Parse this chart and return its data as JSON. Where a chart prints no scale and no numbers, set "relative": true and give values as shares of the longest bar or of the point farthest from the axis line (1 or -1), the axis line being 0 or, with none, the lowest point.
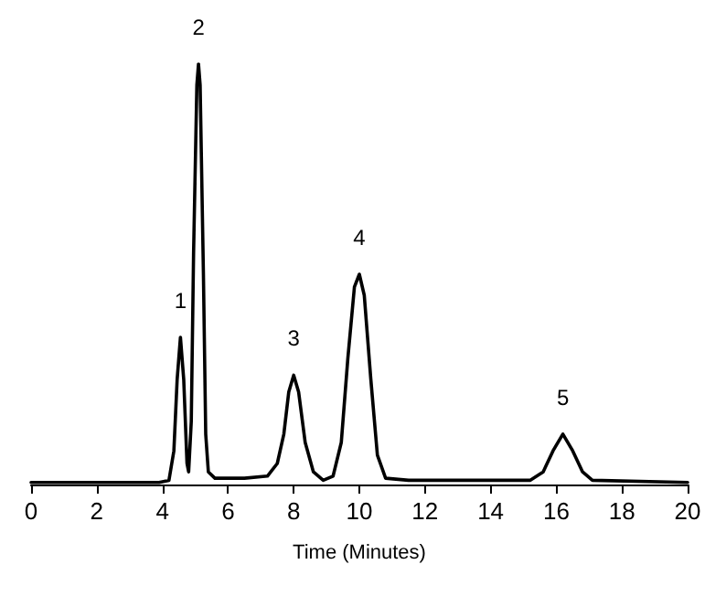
{
  "chart_data": {
    "type": "line",
    "relative": true,
    "xlabel": "Time (Minutes)",
    "xlim": [
      0,
      20
    ],
    "xticks": [
      0,
      2,
      4,
      6,
      8,
      10,
      12,
      14,
      16,
      18,
      20
    ],
    "marker": "none",
    "line_style": "solid",
    "x": [
      0,
      3.9,
      4.2,
      4.35,
      4.45,
      4.55,
      4.65,
      4.75,
      4.8,
      4.88,
      4.95,
      5.05,
      5.1,
      5.15,
      5.25,
      5.32,
      5.4,
      5.6,
      6.5,
      7.2,
      7.5,
      7.7,
      7.85,
      8.0,
      8.15,
      8.35,
      8.6,
      8.9,
      9.2,
      9.45,
      9.65,
      9.85,
      10.0,
      10.15,
      10.35,
      10.55,
      10.8,
      11.5,
      14,
      15.2,
      15.6,
      15.9,
      16.2,
      16.5,
      16.8,
      17.1,
      20
    ],
    "series": [
      {
        "color": "#000000",
        "values": [
          0.005,
          0.005,
          0.01,
          0.08,
          0.25,
          0.35,
          0.25,
          0.05,
          0.03,
          0.15,
          0.55,
          0.95,
          1,
          0.95,
          0.5,
          0.12,
          0.03,
          0.015,
          0.015,
          0.02,
          0.05,
          0.12,
          0.22,
          0.26,
          0.22,
          0.1,
          0.03,
          0.01,
          0.02,
          0.1,
          0.3,
          0.47,
          0.5,
          0.45,
          0.25,
          0.07,
          0.015,
          0.01,
          0.01,
          0.01,
          0.03,
          0.08,
          0.12,
          0.08,
          0.03,
          0.01,
          0.005
        ]
      }
    ],
    "annotations": [
      {
        "text": "1",
        "x": 4.55,
        "y": 0.35
      },
      {
        "text": "2",
        "x": 5.1,
        "y": 1
      },
      {
        "text": "3",
        "x": 8.0,
        "y": 0.26
      },
      {
        "text": "4",
        "x": 10.0,
        "y": 0.5
      },
      {
        "text": "5",
        "x": 16.2,
        "y": 0.12
      }
    ]
  }
}
